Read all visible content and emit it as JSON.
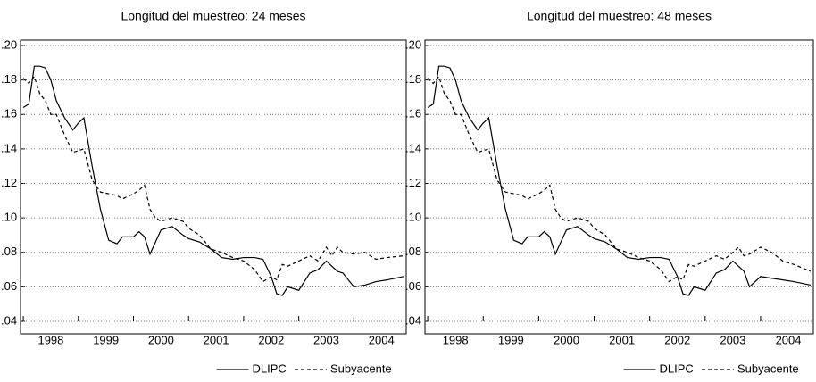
{
  "chart_data": [
    {
      "type": "line",
      "title": "Longitud del muestreo: 24 meses",
      "x": [
        1998.0,
        1998.1,
        1998.2,
        1998.3,
        1998.4,
        1998.5,
        1998.6,
        1998.75,
        1998.9,
        1999.0,
        1999.1,
        1999.25,
        1999.4,
        1999.55,
        1999.7,
        1999.8,
        2000.0,
        2000.1,
        2000.2,
        2000.3,
        2000.4,
        2000.5,
        2000.7,
        2000.9,
        2001.0,
        2001.2,
        2001.4,
        2001.6,
        2001.8,
        2002.0,
        2002.2,
        2002.35,
        2002.5,
        2002.6,
        2002.7,
        2002.8,
        2003.0,
        2003.2,
        2003.35,
        2003.5,
        2003.6,
        2003.7,
        2003.8,
        2004.0,
        2004.2,
        2004.4,
        2004.6,
        2004.9
      ],
      "series": [
        {
          "name": "DLIPC",
          "color": "#000000",
          "dash": "solid",
          "values": [
            0.164,
            0.166,
            0.188,
            0.188,
            0.187,
            0.18,
            0.168,
            0.158,
            0.151,
            0.155,
            0.158,
            0.13,
            0.105,
            0.087,
            0.085,
            0.089,
            0.089,
            0.092,
            0.089,
            0.079,
            0.086,
            0.093,
            0.095,
            0.09,
            0.088,
            0.086,
            0.082,
            0.077,
            0.076,
            0.077,
            0.077,
            0.076,
            0.066,
            0.056,
            0.055,
            0.06,
            0.058,
            0.068,
            0.07,
            0.075,
            0.072,
            0.069,
            0.068,
            0.06,
            0.061,
            0.063,
            0.064,
            0.066
          ]
        },
        {
          "name": "Subyacente",
          "color": "#000000",
          "dash": "dashed",
          "values": [
            0.181,
            0.178,
            0.182,
            0.172,
            0.168,
            0.16,
            0.16,
            0.148,
            0.138,
            0.139,
            0.14,
            0.122,
            0.115,
            0.114,
            0.113,
            0.111,
            0.114,
            0.116,
            0.119,
            0.105,
            0.1,
            0.098,
            0.1,
            0.098,
            0.094,
            0.09,
            0.082,
            0.08,
            0.077,
            0.075,
            0.07,
            0.063,
            0.066,
            0.064,
            0.073,
            0.072,
            0.075,
            0.078,
            0.075,
            0.083,
            0.078,
            0.083,
            0.08,
            0.079,
            0.08,
            0.076,
            0.077,
            0.078
          ]
        }
      ],
      "xlim": [
        1997.95,
        2004.95
      ],
      "xticks": [
        1998,
        1999,
        2000,
        2001,
        2002,
        2003,
        2004
      ],
      "ylim": [
        0.04,
        0.2
      ],
      "yticks": [
        {
          "value": 0.04,
          "label": ".04"
        },
        {
          "value": 0.06,
          "label": ".06"
        },
        {
          "value": 0.08,
          "label": ".08"
        },
        {
          "value": 0.1,
          "label": ".10"
        },
        {
          "value": 0.12,
          "label": ".12"
        },
        {
          "value": 0.14,
          "label": ".14"
        },
        {
          "value": 0.16,
          "label": ".16"
        },
        {
          "value": 0.18,
          "label": ".18"
        },
        {
          "value": 0.2,
          "label": ".20"
        }
      ],
      "grid": true,
      "legend": "bottom-right"
    },
    {
      "type": "line",
      "title": "Longitud del muestreo: 48 meses",
      "x": [
        1998.0,
        1998.1,
        1998.2,
        1998.3,
        1998.4,
        1998.5,
        1998.6,
        1998.75,
        1998.9,
        1999.0,
        1999.1,
        1999.25,
        1999.4,
        1999.55,
        1999.7,
        1999.8,
        2000.0,
        2000.1,
        2000.2,
        2000.3,
        2000.4,
        2000.5,
        2000.7,
        2000.9,
        2001.0,
        2001.2,
        2001.4,
        2001.6,
        2001.8,
        2002.0,
        2002.2,
        2002.35,
        2002.5,
        2002.6,
        2002.7,
        2002.8,
        2003.0,
        2003.2,
        2003.35,
        2003.5,
        2003.6,
        2003.7,
        2003.8,
        2004.0,
        2004.2,
        2004.4,
        2004.6,
        2004.9
      ],
      "series": [
        {
          "name": "DLIPC",
          "color": "#000000",
          "dash": "solid",
          "values": [
            0.164,
            0.166,
            0.188,
            0.188,
            0.187,
            0.18,
            0.168,
            0.158,
            0.151,
            0.155,
            0.158,
            0.13,
            0.105,
            0.087,
            0.085,
            0.089,
            0.089,
            0.092,
            0.089,
            0.079,
            0.086,
            0.093,
            0.095,
            0.09,
            0.088,
            0.086,
            0.082,
            0.077,
            0.076,
            0.077,
            0.077,
            0.076,
            0.066,
            0.056,
            0.055,
            0.06,
            0.058,
            0.068,
            0.07,
            0.075,
            0.072,
            0.069,
            0.06,
            0.066,
            0.065,
            0.064,
            0.063,
            0.061
          ]
        },
        {
          "name": "Subyacente",
          "color": "#000000",
          "dash": "dashed",
          "values": [
            0.181,
            0.178,
            0.182,
            0.172,
            0.168,
            0.16,
            0.16,
            0.148,
            0.138,
            0.139,
            0.14,
            0.122,
            0.115,
            0.114,
            0.113,
            0.111,
            0.114,
            0.116,
            0.119,
            0.105,
            0.1,
            0.098,
            0.1,
            0.098,
            0.094,
            0.09,
            0.082,
            0.08,
            0.077,
            0.075,
            0.07,
            0.063,
            0.066,
            0.064,
            0.073,
            0.072,
            0.075,
            0.078,
            0.076,
            0.08,
            0.083,
            0.078,
            0.079,
            0.083,
            0.08,
            0.075,
            0.073,
            0.069
          ]
        }
      ],
      "xlim": [
        1997.95,
        2004.95
      ],
      "xticks": [
        1998,
        1999,
        2000,
        2001,
        2002,
        2003,
        2004
      ],
      "ylim": [
        0.04,
        0.2
      ],
      "yticks": [
        {
          "value": 0.04,
          "label": ".04"
        },
        {
          "value": 0.06,
          "label": ".06"
        },
        {
          "value": 0.08,
          "label": ".08"
        },
        {
          "value": 0.1,
          "label": ".10"
        },
        {
          "value": 0.12,
          "label": ".12"
        },
        {
          "value": 0.14,
          "label": ".14"
        },
        {
          "value": 0.16,
          "label": ".16"
        },
        {
          "value": 0.18,
          "label": ".18"
        },
        {
          "value": 0.2,
          "label": ".20"
        }
      ],
      "grid": true,
      "legend": "bottom-right"
    }
  ]
}
